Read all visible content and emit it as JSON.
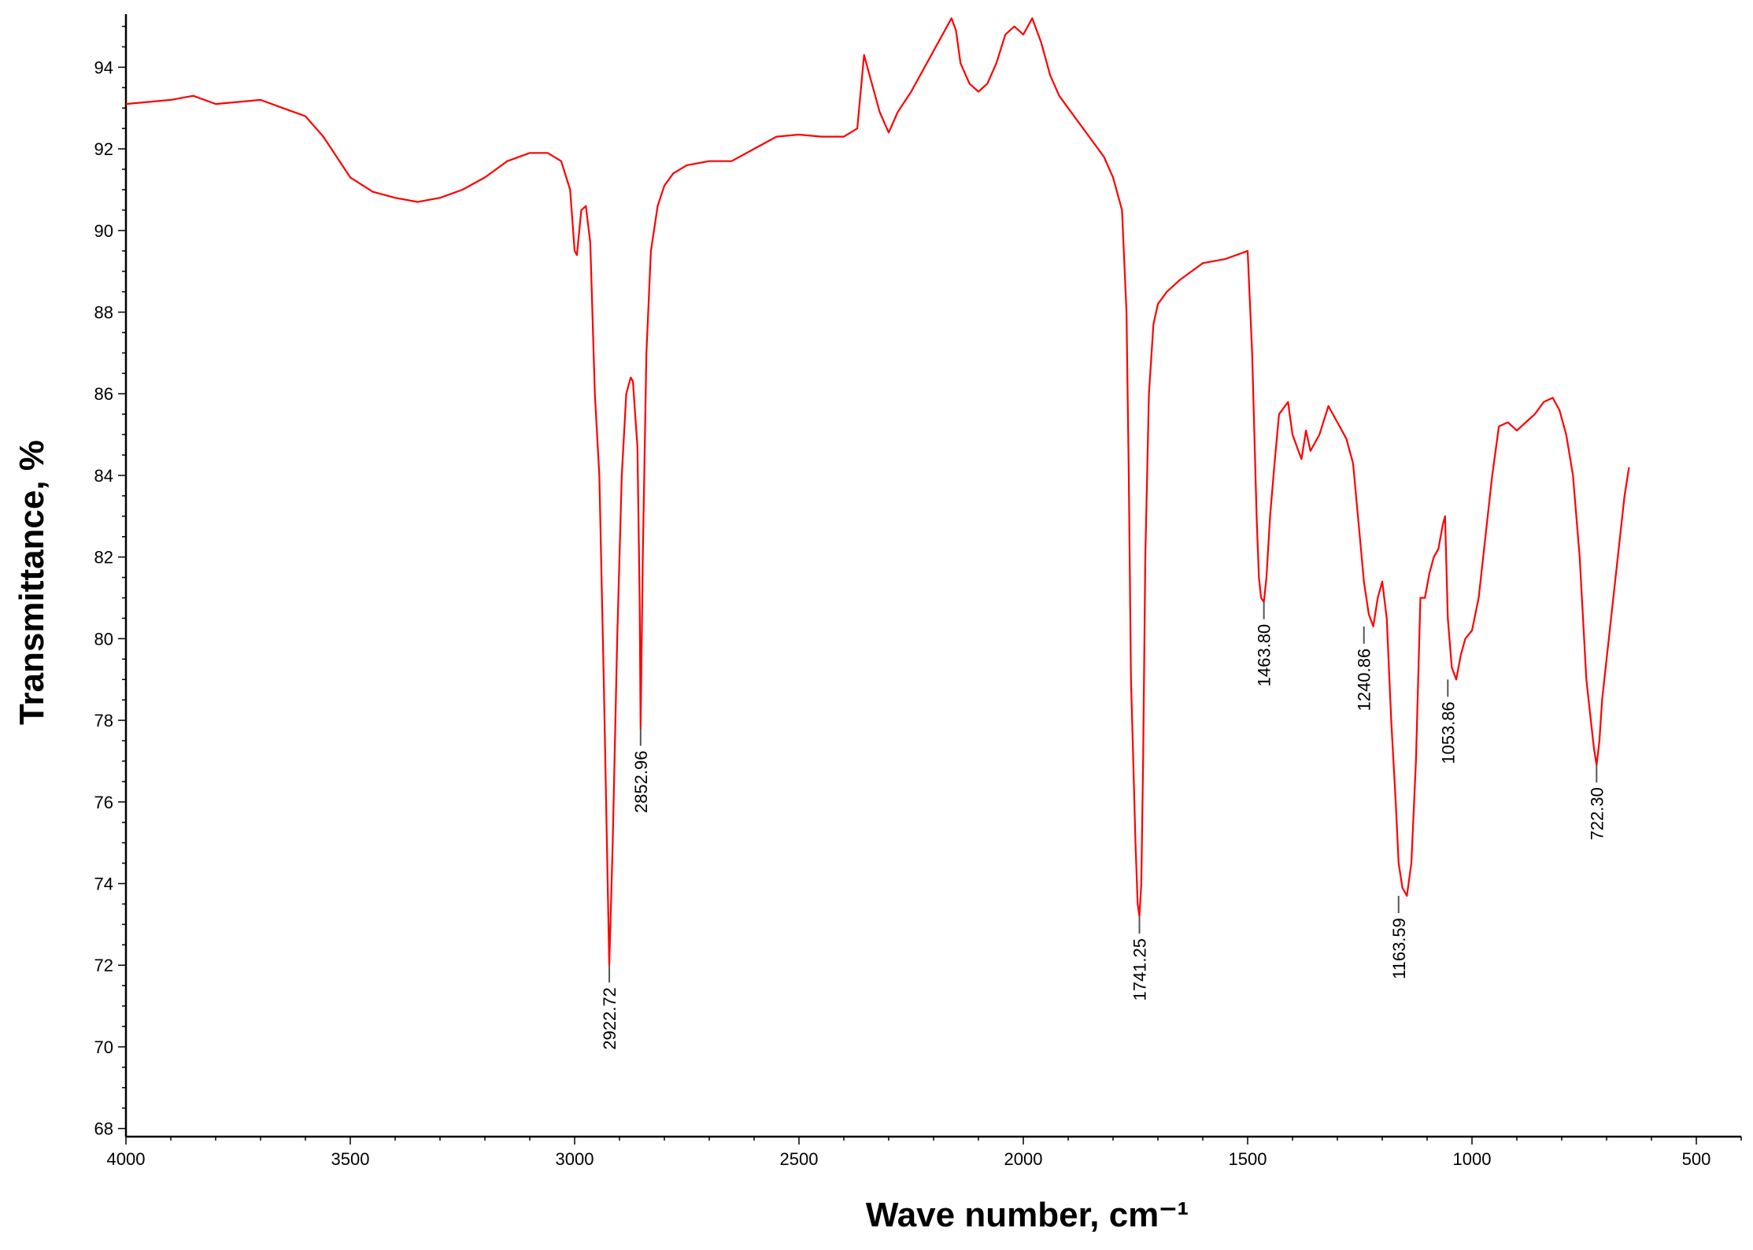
{
  "chart_data": {
    "type": "line",
    "title": "",
    "xlabel": "Wave number, cm⁻¹",
    "ylabel": "Transmittance, %",
    "xlim": [
      4000,
      400
    ],
    "x_reversed": true,
    "ylim": [
      67.8,
      95.3
    ],
    "x_ticks": [
      "4000",
      "3500",
      "3000",
      "2500",
      "2000",
      "1500",
      "1000",
      "500"
    ],
    "x_tick_values": [
      4000,
      3500,
      3000,
      2500,
      2000,
      1500,
      1000,
      500
    ],
    "y_ticks": [
      "68",
      "70",
      "72",
      "74",
      "76",
      "78",
      "80",
      "82",
      "84",
      "86",
      "88",
      "90",
      "92",
      "94"
    ],
    "y_tick_values": [
      68,
      70,
      72,
      74,
      76,
      78,
      80,
      82,
      84,
      86,
      88,
      90,
      92,
      94
    ],
    "grid": false,
    "line_color": "#ff0000",
    "series": [
      {
        "x": [
          4000,
          3900,
          3850,
          3800,
          3700,
          3650,
          3600,
          3560,
          3500,
          3450,
          3400,
          3350,
          3300,
          3250,
          3200,
          3150,
          3100,
          3060,
          3030,
          3010,
          3000,
          2995,
          2985,
          2975,
          2965,
          2955,
          2945,
          2935,
          2928,
          2922.72,
          2915,
          2905,
          2895,
          2885,
          2875,
          2870,
          2865,
          2860,
          2855,
          2852.96,
          2848,
          2840,
          2830,
          2815,
          2800,
          2780,
          2750,
          2700,
          2650,
          2600,
          2550,
          2500,
          2450,
          2400,
          2370,
          2355,
          2340,
          2320,
          2300,
          2280,
          2250,
          2200,
          2160,
          2150,
          2140,
          2120,
          2100,
          2080,
          2060,
          2040,
          2020,
          2000,
          1980,
          1970,
          1960,
          1940,
          1920,
          1900,
          1880,
          1860,
          1840,
          1820,
          1800,
          1780,
          1770,
          1765,
          1760,
          1755,
          1750,
          1745,
          1741.25,
          1737,
          1733,
          1728,
          1720,
          1710,
          1700,
          1680,
          1650,
          1600,
          1550,
          1500,
          1490,
          1480,
          1475,
          1470,
          1463.8,
          1458,
          1450,
          1440,
          1430,
          1410,
          1400,
          1390,
          1380,
          1370,
          1360,
          1340,
          1320,
          1300,
          1280,
          1265,
          1250,
          1240.86,
          1230,
          1220,
          1210,
          1200,
          1190,
          1180,
          1170,
          1163.59,
          1155,
          1145,
          1135,
          1125,
          1115,
          1105,
          1095,
          1085,
          1075,
          1065,
          1060,
          1053.86,
          1045,
          1035,
          1025,
          1015,
          1000,
          985,
          970,
          955,
          940,
          920,
          900,
          880,
          860,
          840,
          820,
          805,
          790,
          775,
          760,
          745,
          735,
          728,
          722.3,
          716,
          710,
          700,
          690,
          680,
          670,
          660,
          650
        ],
        "values": [
          93.1,
          93.2,
          93.3,
          93.1,
          93.2,
          93.0,
          92.8,
          92.3,
          91.3,
          90.95,
          90.8,
          90.7,
          90.8,
          91.0,
          91.3,
          91.7,
          91.9,
          91.9,
          91.7,
          91.0,
          89.5,
          89.4,
          90.5,
          90.6,
          89.7,
          86.0,
          84.0,
          79.0,
          75.0,
          72.0,
          75.0,
          80.0,
          84.0,
          86.0,
          86.4,
          86.3,
          85.5,
          84.7,
          81.0,
          77.8,
          82.0,
          87.0,
          89.5,
          90.6,
          91.1,
          91.4,
          91.6,
          91.7,
          91.7,
          92.0,
          92.3,
          92.35,
          92.3,
          92.3,
          92.5,
          94.3,
          93.7,
          92.9,
          92.4,
          92.9,
          93.4,
          94.4,
          95.2,
          94.9,
          94.1,
          93.6,
          93.4,
          93.6,
          94.1,
          94.8,
          95.0,
          94.8,
          95.2,
          94.9,
          94.6,
          93.8,
          93.3,
          93.0,
          92.7,
          92.4,
          92.1,
          91.8,
          91.3,
          90.5,
          88.0,
          84.0,
          79.0,
          77.0,
          75.0,
          73.5,
          73.2,
          74.0,
          77.0,
          82.0,
          86.0,
          87.7,
          88.2,
          88.5,
          88.8,
          89.2,
          89.3,
          89.5,
          87.0,
          83.0,
          81.5,
          81.0,
          80.9,
          81.5,
          83.0,
          84.3,
          85.5,
          85.8,
          85.0,
          84.7,
          84.4,
          85.1,
          84.6,
          85.0,
          85.7,
          85.3,
          84.9,
          84.3,
          82.5,
          81.4,
          80.6,
          80.3,
          81.0,
          81.4,
          80.5,
          78.0,
          76.0,
          74.5,
          73.9,
          73.7,
          74.5,
          77.0,
          81.0,
          81.0,
          81.6,
          82.0,
          82.2,
          82.8,
          83.0,
          80.5,
          79.3,
          79.0,
          79.6,
          80.0,
          80.2,
          81.0,
          82.5,
          84.0,
          85.2,
          85.3,
          85.1,
          85.3,
          85.5,
          85.8,
          85.9,
          85.6,
          85.0,
          84.0,
          82.0,
          79.0,
          78.0,
          77.3,
          76.9,
          77.5,
          78.5,
          79.5,
          80.5,
          81.5,
          82.5,
          83.5,
          84.2
        ]
      }
    ],
    "annotations": [
      {
        "text": "2922.72",
        "x": 2922.72,
        "y": 72.0
      },
      {
        "text": "2852.96",
        "x": 2852.96,
        "y": 77.8
      },
      {
        "text": "1741.25",
        "x": 1741.25,
        "y": 73.2
      },
      {
        "text": "1463.80",
        "x": 1463.8,
        "y": 80.9
      },
      {
        "text": "1240.86",
        "x": 1240.86,
        "y": 80.3
      },
      {
        "text": "1163.59",
        "x": 1163.59,
        "y": 73.7
      },
      {
        "text": "1053.86",
        "x": 1053.86,
        "y": 79.0
      },
      {
        "text": "722.30",
        "x": 722.3,
        "y": 76.9
      }
    ]
  }
}
